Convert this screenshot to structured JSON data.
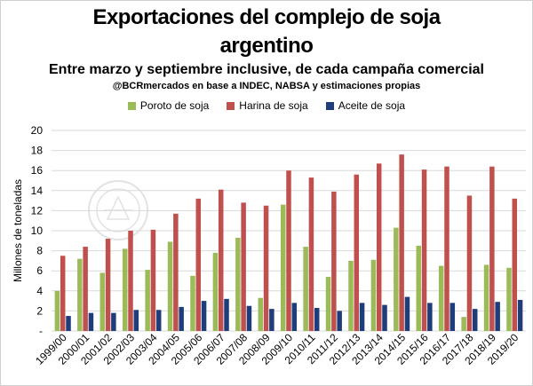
{
  "chart_data": {
    "type": "bar",
    "title_line1": "Exportaciones del complejo de soja",
    "title_line2": "argentino",
    "subtitle": "Entre marzo y septiembre inclusive, de cada campaña comercial",
    "source": "@BCRmercados en base a INDEC, NABSA y estimaciones propias",
    "ylabel": "Millones de toneladas",
    "xlabel": "",
    "ylim": [
      0,
      20
    ],
    "yticks": [
      "-",
      "2",
      "4",
      "6",
      "8",
      "10",
      "12",
      "14",
      "16",
      "18",
      "20"
    ],
    "grid": true,
    "legend_position": "top",
    "categories": [
      "1999/00",
      "2000/01",
      "2001/02",
      "2002/03",
      "2003/04",
      "2004/05",
      "2005/06",
      "2006/07",
      "2007/08",
      "2008/09",
      "2009/10",
      "2010/11",
      "2011/12",
      "2012/13",
      "2013/14",
      "2014/15",
      "2015/16",
      "2016/17",
      "2017/18",
      "2018/19",
      "2019/20"
    ],
    "series": [
      {
        "name": "Poroto de soja",
        "color": "#9bbb59",
        "values": [
          4.0,
          7.2,
          5.8,
          8.2,
          6.1,
          8.9,
          5.5,
          7.8,
          9.3,
          3.3,
          12.6,
          8.4,
          5.4,
          7.0,
          7.1,
          10.3,
          8.5,
          6.5,
          1.4,
          6.6,
          6.3
        ]
      },
      {
        "name": "Harina de soja",
        "color": "#c0504d",
        "values": [
          7.5,
          8.4,
          9.2,
          10.0,
          10.1,
          11.7,
          13.2,
          14.1,
          12.8,
          12.5,
          16.0,
          15.3,
          13.9,
          15.6,
          16.7,
          17.6,
          16.1,
          16.4,
          13.5,
          16.4,
          13.2
        ]
      },
      {
        "name": "Aceite de soja",
        "color": "#1f3d7a",
        "values": [
          1.5,
          1.8,
          1.8,
          2.1,
          2.1,
          2.4,
          3.0,
          3.2,
          2.5,
          2.2,
          2.8,
          2.3,
          2.0,
          2.8,
          2.6,
          3.4,
          2.8,
          2.8,
          2.2,
          2.9,
          3.1
        ]
      }
    ]
  }
}
